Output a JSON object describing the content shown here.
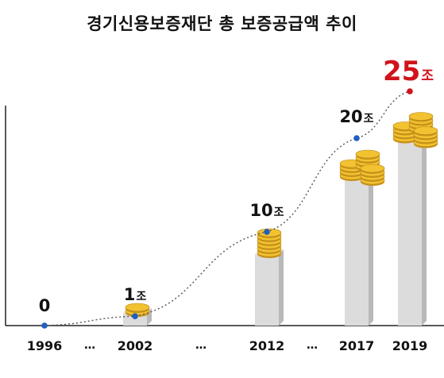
{
  "title": "경기신용보증재단 총 보증공급액 추이",
  "colors": {
    "text": "#111111",
    "highlight": "#d0131c",
    "point": "#1f5fbf",
    "trend_line": "#555555",
    "bar_front": "#dcdcdc",
    "bar_side": "#b9b9b9",
    "coin": "#f2c230"
  },
  "icons": [
    "coin-stack-icon"
  ],
  "chart_data": {
    "type": "bar",
    "title": "경기신용보증재단 총 보증공급액 추이",
    "categories": [
      "1996",
      "2002",
      "2012",
      "2017",
      "2019"
    ],
    "gap_marker": "…",
    "series": [
      {
        "values": [
          0,
          1,
          10,
          20,
          25
        ],
        "labels": [
          "0",
          "1",
          "10",
          "20",
          "25"
        ]
      }
    ],
    "unit": "조",
    "highlight_category": "2019",
    "overlay": "dotted trend line with point markers",
    "xlabel": "",
    "ylabel": "",
    "grid": false
  }
}
